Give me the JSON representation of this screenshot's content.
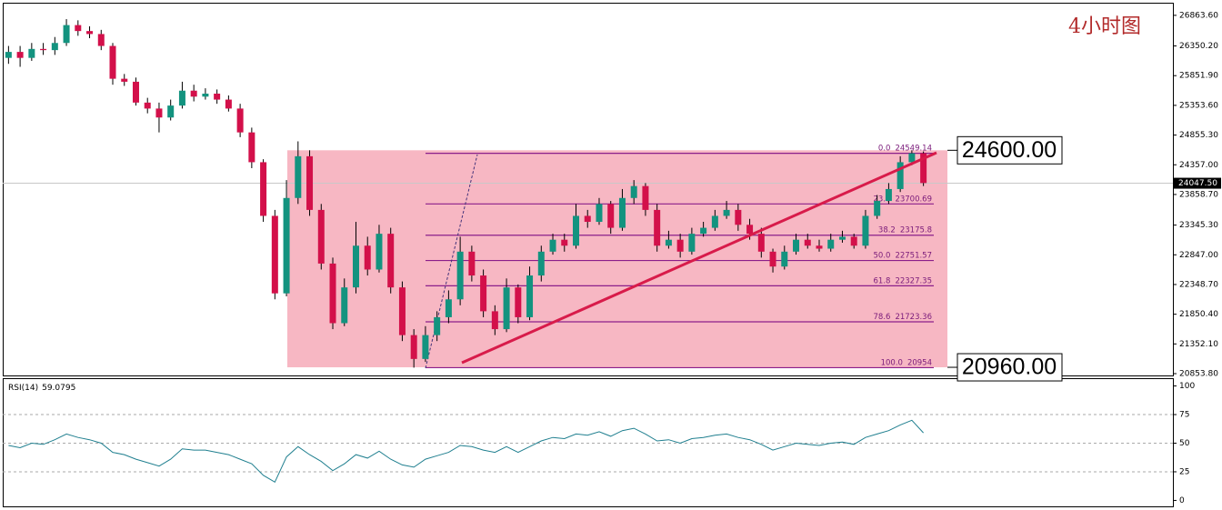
{
  "chart_data": [
    {
      "type": "candlestick",
      "title": "4小时图",
      "up_color": "#13937f",
      "down_color": "#d3104a",
      "open": [
        26150,
        26250,
        26150,
        26300,
        26280,
        26400,
        26700,
        26600,
        26550,
        26350,
        25800,
        25750,
        25400,
        25300,
        25150,
        25350,
        25600,
        25500,
        25550,
        25450,
        25300,
        24900,
        24400,
        23500,
        22200,
        23800,
        24500,
        23600,
        22700,
        21700,
        22300,
        23000,
        22600,
        23200,
        22300,
        21500,
        21100,
        21500,
        21800,
        22100,
        22900,
        22500,
        21900,
        21600,
        22300,
        21800,
        22500,
        22900,
        23100,
        23000,
        23500,
        23400,
        23700,
        23300,
        23800,
        24000,
        23600,
        23000,
        23100,
        22900,
        23200,
        23300,
        23500,
        23600,
        23350,
        23200,
        22900,
        22650,
        22900,
        23100,
        23000,
        22950,
        23100,
        23150,
        23000,
        23500,
        23750,
        23950,
        24400,
        24550
      ],
      "high": [
        26350,
        26350,
        26400,
        26400,
        26500,
        26800,
        26780,
        26680,
        26620,
        26400,
        25880,
        25820,
        25480,
        25400,
        25450,
        25750,
        25700,
        25640,
        25620,
        25520,
        25380,
        24980,
        24450,
        23600,
        24100,
        24750,
        24600,
        23700,
        22800,
        22450,
        23400,
        23150,
        23350,
        23300,
        22400,
        21600,
        21650,
        21900,
        22250,
        23150,
        23000,
        22600,
        22000,
        22450,
        22350,
        22650,
        23000,
        23200,
        23200,
        23700,
        23600,
        23800,
        23750,
        23950,
        24100,
        24050,
        23700,
        23250,
        23200,
        23300,
        23400,
        23600,
        23750,
        23700,
        23450,
        23300,
        22950,
        23000,
        23200,
        23200,
        23100,
        23200,
        23250,
        23200,
        23600,
        23850,
        24050,
        24500,
        24600,
        24580
      ],
      "low": [
        26050,
        26000,
        26100,
        26200,
        26200,
        26350,
        26520,
        26480,
        26280,
        25700,
        25680,
        25350,
        25220,
        24900,
        25100,
        25300,
        25420,
        25450,
        25380,
        25250,
        24820,
        24300,
        23400,
        22100,
        22150,
        23700,
        23500,
        22600,
        21600,
        21650,
        22200,
        22500,
        22550,
        22200,
        21400,
        20954,
        21050,
        21400,
        21700,
        22000,
        22400,
        21800,
        21500,
        21550,
        21700,
        21750,
        22400,
        22850,
        22900,
        22950,
        23300,
        23350,
        23200,
        23250,
        23700,
        23500,
        22900,
        22950,
        22800,
        22850,
        23150,
        23250,
        23450,
        23250,
        23100,
        22800,
        22550,
        22600,
        22850,
        22950,
        22900,
        22900,
        23050,
        22950,
        22950,
        23450,
        23700,
        23900,
        24350,
        24000
      ],
      "close": [
        26250,
        26150,
        26300,
        26280,
        26400,
        26700,
        26600,
        26550,
        26350,
        25800,
        25750,
        25400,
        25300,
        25150,
        25350,
        25600,
        25500,
        25550,
        25450,
        25300,
        24900,
        24400,
        23500,
        22200,
        23800,
        24500,
        23600,
        22700,
        21700,
        22300,
        23000,
        22600,
        23200,
        22300,
        21500,
        21100,
        21500,
        21800,
        22100,
        22900,
        22500,
        21900,
        21600,
        22300,
        21800,
        22500,
        22900,
        23100,
        23000,
        23500,
        23400,
        23700,
        23300,
        23800,
        24000,
        23600,
        23000,
        23100,
        22900,
        23200,
        23300,
        23500,
        23600,
        23350,
        23200,
        22900,
        22650,
        22900,
        23100,
        23000,
        22950,
        23100,
        23150,
        23000,
        23500,
        23750,
        23950,
        24400,
        24550,
        24050
      ],
      "ylim": [
        20808,
        27075
      ],
      "yticks": [
        {
          "value": 26863.6,
          "label": "26863.60"
        },
        {
          "value": 26350.2,
          "label": "26350.20"
        },
        {
          "value": 25851.9,
          "label": "25851.90"
        },
        {
          "value": 25353.6,
          "label": "25353.60"
        },
        {
          "value": 24855.3,
          "label": "24855.30"
        },
        {
          "value": 24357,
          "label": "24357.00"
        },
        {
          "value": 23858.7,
          "label": "23858.70"
        },
        {
          "value": 23345.3,
          "label": "23345.30"
        },
        {
          "value": 22847,
          "label": "22847.00"
        },
        {
          "value": 22348.7,
          "label": "22348.70"
        },
        {
          "value": 21850.4,
          "label": "21850.40"
        },
        {
          "value": 21352.1,
          "label": "21352.10"
        },
        {
          "value": 20853.8,
          "label": "20853.80"
        }
      ],
      "current_price": {
        "value": 24047.5,
        "label": "24047.50"
      },
      "fib_color": "#8b1f8b",
      "fibonacci": [
        {
          "ratio": "0.0",
          "price": 24549.14
        },
        {
          "ratio": "23.6",
          "price": 23700.69
        },
        {
          "ratio": "38.2",
          "price": 23175.8
        },
        {
          "ratio": "50.0",
          "price": 22751.57
        },
        {
          "ratio": "61.8",
          "price": 22327.35
        },
        {
          "ratio": "78.6",
          "price": 21723.36
        },
        {
          "ratio": "100.0",
          "price": 20954
        }
      ],
      "zone_color": "#f7b7c3",
      "annotations": [
        {
          "value": 24600,
          "label": "24600.00"
        },
        {
          "value": 20960,
          "label": "20960.00"
        }
      ]
    },
    {
      "type": "line",
      "name": "RSI(14)",
      "color": "#1f7f8f",
      "values": [
        48,
        46,
        50,
        49,
        53,
        58,
        55,
        53,
        50,
        42,
        40,
        36,
        33,
        30,
        36,
        45,
        44,
        44,
        42,
        40,
        36,
        32,
        22,
        16,
        38,
        47,
        40,
        34,
        26,
        32,
        40,
        37,
        43,
        36,
        31,
        29,
        36,
        39,
        42,
        48,
        47,
        44,
        42,
        47,
        42,
        47,
        52,
        55,
        54,
        58,
        57,
        60,
        56,
        61,
        63,
        58,
        52,
        53,
        50,
        54,
        55,
        57,
        58,
        55,
        53,
        49,
        44,
        47,
        50,
        49,
        48,
        50,
        51,
        49,
        55,
        58,
        61,
        66,
        70,
        59.0795
      ],
      "ylim": [
        -6,
        106
      ],
      "yticks": [
        0,
        25,
        50,
        75,
        100
      ],
      "levels": [
        25,
        50,
        75
      ]
    }
  ]
}
